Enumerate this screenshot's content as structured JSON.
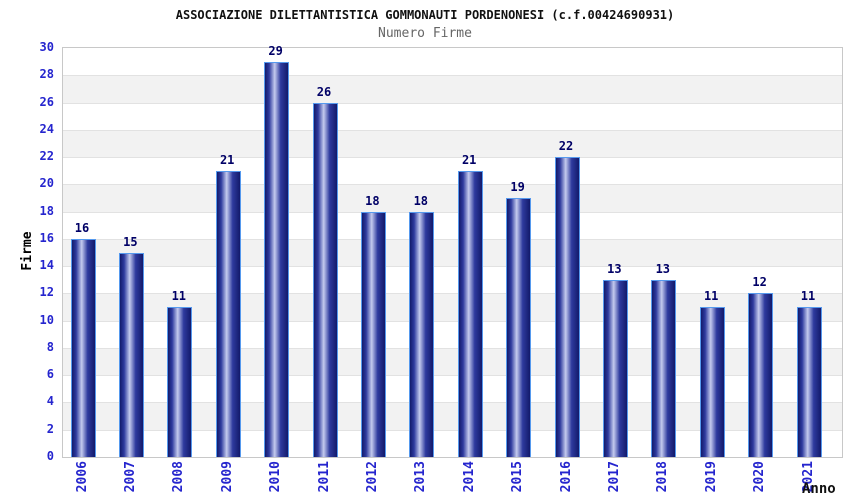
{
  "chart_data": {
    "type": "bar",
    "title": "ASSOCIAZIONE DILETTANTISTICA GOMMONAUTI PORDENONESI (c.f.00424690931)",
    "subtitle": "Numero Firme",
    "xlabel": "Anno",
    "ylabel": "Firme",
    "categories": [
      "2006",
      "2007",
      "2008",
      "2009",
      "2010",
      "2011",
      "2012",
      "2013",
      "2014",
      "2015",
      "2016",
      "2017",
      "2018",
      "2019",
      "2020",
      "2021"
    ],
    "values": [
      16,
      15,
      11,
      21,
      29,
      26,
      18,
      18,
      21,
      19,
      22,
      13,
      13,
      11,
      12,
      11
    ],
    "ylim": [
      0,
      30
    ],
    "yticks": [
      0,
      2,
      4,
      6,
      8,
      10,
      12,
      14,
      16,
      18,
      20,
      22,
      24,
      26,
      28,
      30
    ],
    "grid": "horizontal-bands",
    "legend": "none",
    "colors": {
      "axis_text": "#2525CE",
      "value_label": "#000066",
      "title_text": "#111111",
      "subtitle_text": "#666666",
      "axis_title_text": "#000000",
      "band_light": "#ffffff",
      "band_dark": "#f2f2f2",
      "grid_line": "#e2e2e2",
      "plot_border": "#c8c8c8",
      "bar_border": "#5599EE",
      "bar_dark": "#131A6B",
      "bar_mid": "#2E3A9E",
      "bar_light": "#C4CAEE"
    }
  }
}
